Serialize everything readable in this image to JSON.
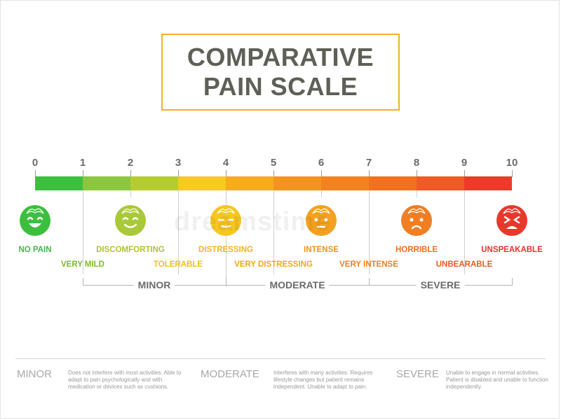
{
  "title": {
    "line1": "COMPARATIVE",
    "line2": "PAIN SCALE"
  },
  "scale": {
    "numbers": [
      "0",
      "1",
      "2",
      "3",
      "4",
      "5",
      "6",
      "7",
      "8",
      "9",
      "10"
    ],
    "segment_colors": [
      "#3cbf3f",
      "#8cc63f",
      "#b5cc2e",
      "#f7c923",
      "#f6ac1e",
      "#f49420",
      "#f4831f",
      "#f2701f",
      "#ef5a26",
      "#eb3b2b"
    ]
  },
  "levels": [
    {
      "value": 0,
      "label": "NO PAIN",
      "color": "#45b649",
      "face": "big-smile"
    },
    {
      "value": 1,
      "label": "VERY MILD",
      "color": "#7cb82f"
    },
    {
      "value": 2,
      "label": "DISCOMFORTING",
      "color": "#b0c42a",
      "face": "content"
    },
    {
      "value": 3,
      "label": "TOLERABLE",
      "color": "#f1bd1f"
    },
    {
      "value": 4,
      "label": "DISTRESSING",
      "color": "#f3b51e",
      "face": "neutral"
    },
    {
      "value": 5,
      "label": "VERY DISTRESSING",
      "color": "#f3a71c"
    },
    {
      "value": 6,
      "label": "INTENSE",
      "color": "#f29320",
      "face": "flat"
    },
    {
      "value": 7,
      "label": "VERY INTENSE",
      "color": "#f08020"
    },
    {
      "value": 8,
      "label": "HORRIBLE",
      "color": "#ee7021",
      "face": "sad"
    },
    {
      "value": 9,
      "label": "UNBEARABLE",
      "color": "#ec5a24"
    },
    {
      "value": 10,
      "label": "UNSPEAKABLE",
      "color": "#e8342d",
      "face": "crying"
    }
  ],
  "face_colors": {
    "big-smile": "#3cbf3f",
    "content": "#a9c93a",
    "neutral": "#f6c623",
    "flat": "#f5a120",
    "sad": "#f07e23",
    "crying": "#e9382b"
  },
  "categories": [
    {
      "name": "MINOR",
      "range": [
        1,
        4
      ]
    },
    {
      "name": "MODERATE",
      "range": [
        4,
        7
      ]
    },
    {
      "name": "SEVERE",
      "range": [
        7,
        10
      ]
    }
  ],
  "legend": [
    {
      "term": "MINOR",
      "description": "Does not interfere with most activities. Able to adapt to pain psychologically and with medication or  devices such as cushions."
    },
    {
      "term": "MODERATE",
      "description": "Interferes with many activities. Requires lifestyle changes but patient remains independent. Unable to adapt to pain."
    },
    {
      "term": "SEVERE",
      "description": "Unable to engage in normal activities. Patient is disabled and unable to function  independently."
    }
  ],
  "watermark": "dreamstime"
}
